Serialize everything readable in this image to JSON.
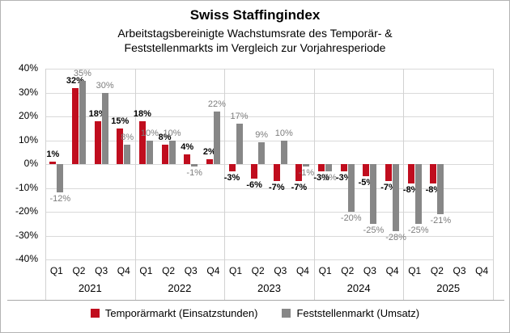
{
  "title": "Swiss Staffingindex",
  "subtitle_line1": "Arbeitstagsbereinigte Wachstumsrate des Temporär- &",
  "subtitle_line2": "Feststellenmarkts im Vergleich zur Vorjahresperiode",
  "legend": [
    {
      "key": "temporaermarkt",
      "label": "Temporärmarkt (Einsatzstunden)",
      "color": "#c00d1e"
    },
    {
      "key": "feststellenmarkt",
      "label": "Feststellenmarkt (Umsatz)",
      "color": "#878787"
    }
  ],
  "chart_data": {
    "type": "bar",
    "years": [
      "2021",
      "2022",
      "2023",
      "2024",
      "2025"
    ],
    "quarters_per_year": [
      "Q1",
      "Q2",
      "Q3",
      "Q4"
    ],
    "y_ticks": [
      "40%",
      "30%",
      "20%",
      "10%",
      "0%",
      "-10%",
      "-20%",
      "-30%",
      "-40%"
    ],
    "y_axis": {
      "min": -40,
      "max": 40,
      "step": 10,
      "unit": "%"
    },
    "grid": true,
    "legend_position": "bottom",
    "series": [
      {
        "key": "temporaermarkt",
        "name": "Temporärmarkt (Einsatzstunden)",
        "color": "#c00d1e",
        "values": [
          1,
          32,
          18,
          15,
          18,
          8,
          4,
          2,
          -3,
          -6,
          -7,
          -7,
          -3,
          -3,
          -5,
          -7,
          -8,
          -8,
          null,
          null
        ]
      },
      {
        "key": "feststellenmarkt",
        "name": "Feststellenmarkt (Umsatz)",
        "color": "#878787",
        "values": [
          -12,
          35,
          30,
          8,
          10,
          10,
          -1,
          22,
          17,
          9,
          10,
          -1,
          -3,
          -20,
          -25,
          -28,
          -25,
          -21,
          null,
          null
        ]
      }
    ]
  }
}
